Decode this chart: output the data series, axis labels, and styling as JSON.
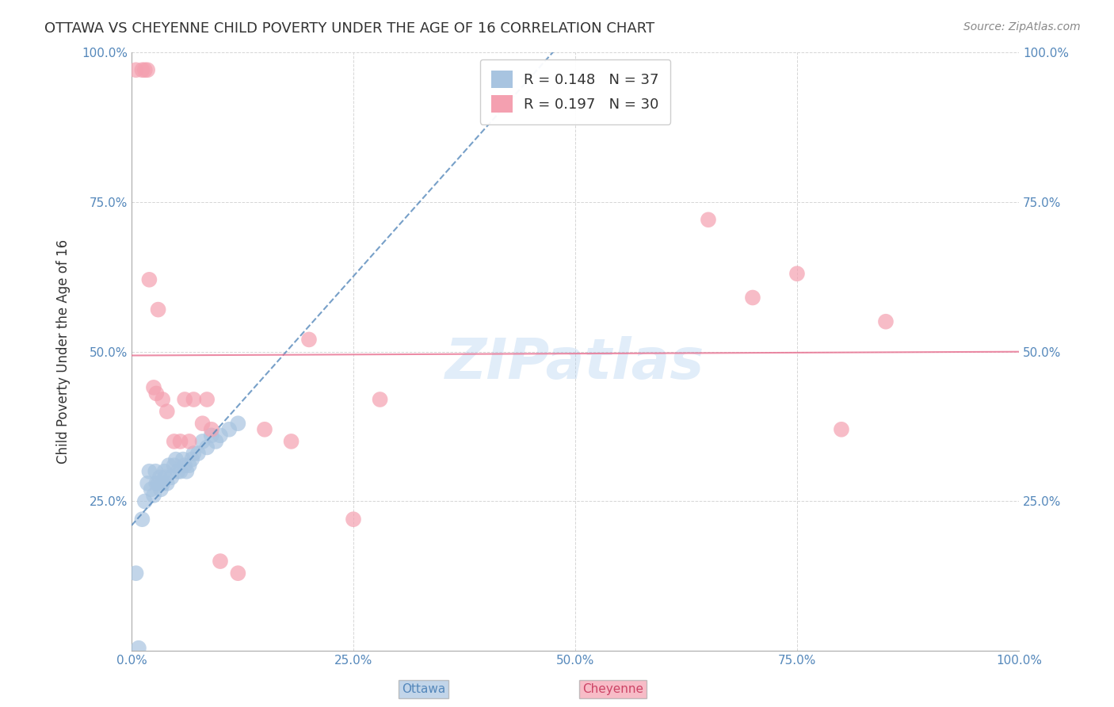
{
  "title": "OTTAWA VS CHEYENNE CHILD POVERTY UNDER THE AGE OF 16 CORRELATION CHART",
  "source": "Source: ZipAtlas.com",
  "xlabel": "",
  "ylabel": "Child Poverty Under the Age of 16",
  "xlim": [
    0.0,
    1.0
  ],
  "ylim": [
    0.0,
    1.0
  ],
  "xticks": [
    0.0,
    0.25,
    0.5,
    0.75,
    1.0
  ],
  "yticks": [
    0.0,
    0.25,
    0.5,
    0.75,
    1.0
  ],
  "xticklabels": [
    "0.0%",
    "25.0%",
    "50.0%",
    "75.0%",
    "100.0%"
  ],
  "yticklabels": [
    "",
    "25.0%",
    "50.0%",
    "75.0%",
    "100.0%"
  ],
  "legend_r_ottawa": "R = 0.148",
  "legend_n_ottawa": "N = 37",
  "legend_r_cheyenne": "R = 0.197",
  "legend_n_cheyenne": "N = 30",
  "ottawa_color": "#a8c4e0",
  "cheyenne_color": "#f4a0b0",
  "ottawa_line_color": "#5588bb",
  "cheyenne_line_color": "#e87090",
  "watermark": "ZIPatlas",
  "background_color": "#ffffff",
  "ottawa_x": [
    0.008,
    0.012,
    0.015,
    0.018,
    0.02,
    0.022,
    0.025,
    0.027,
    0.028,
    0.03,
    0.032,
    0.033,
    0.035,
    0.037,
    0.038,
    0.04,
    0.042,
    0.045,
    0.048,
    0.05,
    0.052,
    0.055,
    0.058,
    0.06,
    0.062,
    0.065,
    0.068,
    0.07,
    0.075,
    0.08,
    0.085,
    0.09,
    0.095,
    0.1,
    0.11,
    0.12,
    0.005
  ],
  "ottawa_y": [
    0.005,
    0.22,
    0.25,
    0.28,
    0.3,
    0.27,
    0.26,
    0.3,
    0.28,
    0.28,
    0.29,
    0.27,
    0.28,
    0.3,
    0.29,
    0.28,
    0.31,
    0.29,
    0.31,
    0.32,
    0.3,
    0.3,
    0.32,
    0.31,
    0.3,
    0.31,
    0.32,
    0.33,
    0.33,
    0.35,
    0.34,
    0.36,
    0.35,
    0.36,
    0.37,
    0.38,
    0.13
  ],
  "cheyenne_x": [
    0.005,
    0.012,
    0.015,
    0.018,
    0.02,
    0.025,
    0.028,
    0.03,
    0.035,
    0.04,
    0.048,
    0.055,
    0.06,
    0.065,
    0.07,
    0.08,
    0.085,
    0.09,
    0.1,
    0.12,
    0.15,
    0.18,
    0.2,
    0.25,
    0.28,
    0.65,
    0.7,
    0.75,
    0.8,
    0.85
  ],
  "cheyenne_y": [
    0.97,
    0.97,
    0.97,
    0.97,
    0.62,
    0.44,
    0.43,
    0.57,
    0.42,
    0.4,
    0.35,
    0.35,
    0.42,
    0.35,
    0.42,
    0.38,
    0.42,
    0.37,
    0.15,
    0.13,
    0.37,
    0.35,
    0.52,
    0.22,
    0.42,
    0.72,
    0.59,
    0.63,
    0.37,
    0.55
  ]
}
